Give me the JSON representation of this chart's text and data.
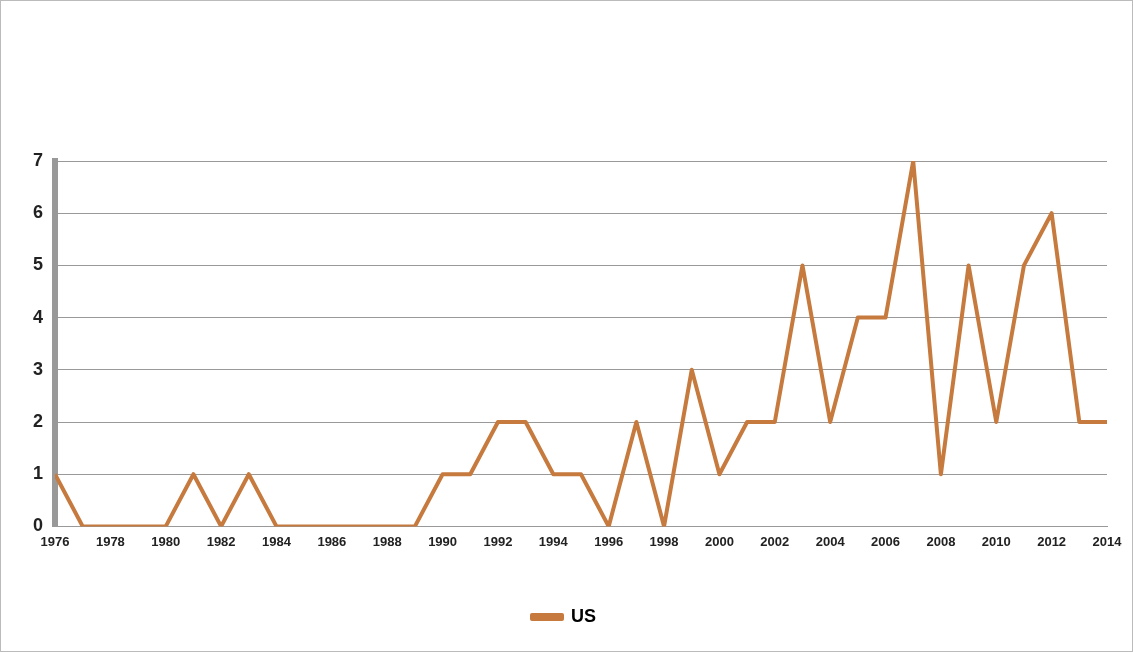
{
  "chart_data": {
    "type": "line",
    "x": [
      1976,
      1977,
      1978,
      1979,
      1980,
      1981,
      1982,
      1983,
      1984,
      1985,
      1986,
      1987,
      1988,
      1989,
      1990,
      1991,
      1992,
      1993,
      1994,
      1995,
      1996,
      1997,
      1998,
      1999,
      2000,
      2001,
      2002,
      2003,
      2004,
      2005,
      2006,
      2007,
      2008,
      2009,
      2010,
      2011,
      2012,
      2013,
      2014
    ],
    "series": [
      {
        "name": "US",
        "color": "#c67a3e",
        "values": [
          1,
          0,
          0,
          0,
          0,
          1,
          0,
          1,
          0,
          0,
          0,
          0,
          0,
          0,
          1,
          1,
          2,
          2,
          1,
          1,
          0,
          2,
          0,
          3,
          1,
          2,
          2,
          5,
          2,
          4,
          4,
          7,
          1,
          5,
          2,
          5,
          6,
          2,
          2
        ]
      }
    ],
    "xlim": [
      1976,
      2014
    ],
    "xticks": [
      1976,
      1978,
      1980,
      1982,
      1984,
      1986,
      1988,
      1990,
      1992,
      1994,
      1996,
      1998,
      2000,
      2002,
      2004,
      2006,
      2008,
      2010,
      2012,
      2014
    ],
    "ylim": [
      0,
      7
    ],
    "yticks": [
      0,
      1,
      2,
      3,
      4,
      5,
      6,
      7
    ],
    "grid": "y",
    "legend": "bottom",
    "marker": "none",
    "line_style": "solid"
  }
}
